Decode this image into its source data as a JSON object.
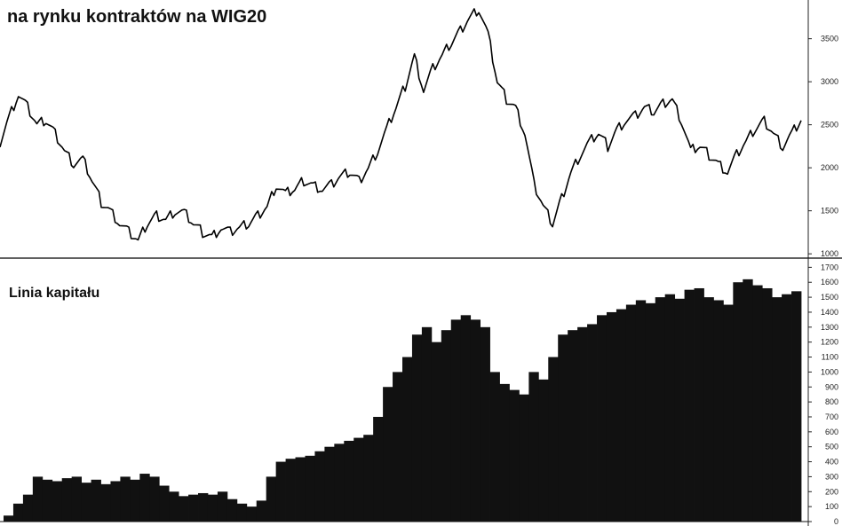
{
  "chart_data": [
    {
      "type": "line",
      "title": "na rynku kontraktów na WIG20",
      "xlabel": "",
      "ylabel": "",
      "ylim": [
        950,
        3950
      ],
      "yticks": [
        1000,
        1500,
        2000,
        2500,
        3000,
        3500
      ],
      "grid": false,
      "legend": "none",
      "axis_side": "right",
      "series": [
        {
          "values": [
            2300,
            2600,
            2850,
            2700,
            2500,
            2550,
            2400,
            2200,
            2050,
            2100,
            1850,
            1600,
            1500,
            1350,
            1250,
            1150,
            1350,
            1450,
            1400,
            1500,
            1480,
            1350,
            1250,
            1200,
            1300,
            1250,
            1300,
            1350,
            1450,
            1550,
            1800,
            1700,
            1750,
            1850,
            1800,
            1750,
            1800,
            1900,
            1950,
            1850,
            2000,
            2200,
            2450,
            2700,
            2950,
            3300,
            2900,
            3150,
            3300,
            3450,
            3600,
            3750,
            3850,
            3550,
            3000,
            2800,
            2700,
            2400,
            1800,
            1550,
            1350,
            1650,
            1950,
            2150,
            2300,
            2400,
            2250,
            2450,
            2550,
            2600,
            2700,
            2650,
            2750,
            2800,
            2550,
            2200,
            2250,
            2150,
            2050,
            1950,
            2150,
            2300,
            2450,
            2550,
            2400,
            2250,
            2400,
            2550
          ]
        }
      ]
    },
    {
      "type": "bar",
      "title": "Linia kapitału",
      "xlabel": "",
      "ylabel": "",
      "ylim": [
        0,
        1720
      ],
      "yticks": [
        0,
        100,
        200,
        300,
        400,
        500,
        600,
        700,
        800,
        900,
        1000,
        1100,
        1200,
        1300,
        1400,
        1500,
        1600,
        1700
      ],
      "grid": false,
      "legend": "none",
      "axis_side": "right",
      "series": [
        {
          "values": [
            40,
            120,
            180,
            300,
            280,
            270,
            290,
            300,
            260,
            280,
            250,
            270,
            300,
            280,
            320,
            300,
            240,
            200,
            170,
            180,
            190,
            180,
            200,
            150,
            120,
            100,
            140,
            300,
            400,
            420,
            430,
            440,
            470,
            500,
            520,
            540,
            560,
            580,
            700,
            900,
            1000,
            1100,
            1250,
            1300,
            1200,
            1280,
            1350,
            1380,
            1350,
            1300,
            1000,
            920,
            880,
            850,
            1000,
            950,
            1100,
            1250,
            1280,
            1300,
            1320,
            1380,
            1400,
            1420,
            1450,
            1480,
            1460,
            1500,
            1520,
            1490,
            1550,
            1560,
            1500,
            1480,
            1450,
            1600,
            1620,
            1580,
            1560,
            1500,
            1520,
            1540
          ]
        }
      ]
    }
  ]
}
